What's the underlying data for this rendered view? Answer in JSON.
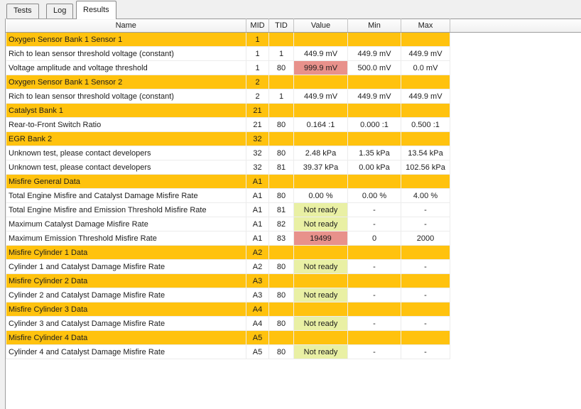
{
  "tabs": [
    {
      "label": "Tests",
      "active": false
    },
    {
      "label": "Log",
      "active": false
    },
    {
      "label": "Results",
      "active": true
    }
  ],
  "table": {
    "columns": [
      "Name",
      "MID",
      "TID",
      "Value",
      "Min",
      "Max"
    ],
    "rows": [
      {
        "type": "group",
        "name": "Oxygen Sensor Bank 1 Sensor 1",
        "mid": "1"
      },
      {
        "type": "data",
        "name": "Rich to lean sensor threshold voltage (constant)",
        "mid": "1",
        "tid": "1",
        "value": "449.9 mV",
        "value_state": "normal",
        "min": "449.9 mV",
        "max": "449.9 mV"
      },
      {
        "type": "data",
        "name": "Voltage amplitude and voltage threshold",
        "mid": "1",
        "tid": "80",
        "value": "999.9 mV",
        "value_state": "alert",
        "min": "500.0 mV",
        "max": "0.0 mV"
      },
      {
        "type": "group",
        "name": "Oxygen Sensor Bank 1 Sensor 2",
        "mid": "2"
      },
      {
        "type": "data",
        "name": "Rich to lean sensor threshold voltage (constant)",
        "mid": "2",
        "tid": "1",
        "value": "449.9 mV",
        "value_state": "normal",
        "min": "449.9 mV",
        "max": "449.9 mV"
      },
      {
        "type": "group",
        "name": "Catalyst Bank 1",
        "mid": "21"
      },
      {
        "type": "data",
        "name": "Rear-to-Front Switch Ratio",
        "mid": "21",
        "tid": "80",
        "value": "0.164 :1",
        "value_state": "normal",
        "min": "0.000 :1",
        "max": "0.500 :1"
      },
      {
        "type": "group",
        "name": "EGR Bank 2",
        "mid": "32"
      },
      {
        "type": "data",
        "name": "Unknown test, please contact developers",
        "mid": "32",
        "tid": "80",
        "value": "2.48 kPa",
        "value_state": "normal",
        "min": "1.35 kPa",
        "max": "13.54 kPa"
      },
      {
        "type": "data",
        "name": "Unknown test, please contact developers",
        "mid": "32",
        "tid": "81",
        "value": "39.37 kPa",
        "value_state": "normal",
        "min": "0.00 kPa",
        "max": "102.56 kPa"
      },
      {
        "type": "group",
        "name": "Misfire General Data",
        "mid": "A1"
      },
      {
        "type": "data",
        "name": "Total Engine Misfire and Catalyst Damage Misfire Rate",
        "mid": "A1",
        "tid": "80",
        "value": "0.00 %",
        "value_state": "normal",
        "min": "0.00 %",
        "max": "4.00 %"
      },
      {
        "type": "data",
        "name": "Total Engine Misfire and Emission Threshold Misfire Rate",
        "mid": "A1",
        "tid": "81",
        "value": "Not ready",
        "value_state": "pending",
        "min": "-",
        "max": "-"
      },
      {
        "type": "data",
        "name": "Maximum Catalyst Damage Misfire Rate",
        "mid": "A1",
        "tid": "82",
        "value": "Not ready",
        "value_state": "pending",
        "min": "-",
        "max": "-"
      },
      {
        "type": "data",
        "name": "Maximum Emission Threshold Misfire Rate",
        "mid": "A1",
        "tid": "83",
        "value": "19499",
        "value_state": "alert",
        "min": "0",
        "max": "2000"
      },
      {
        "type": "group",
        "name": "Misfire Cylinder 1 Data",
        "mid": "A2"
      },
      {
        "type": "data",
        "name": "Cylinder 1 and Catalyst Damage Misfire Rate",
        "mid": "A2",
        "tid": "80",
        "value": "Not ready",
        "value_state": "pending",
        "min": "-",
        "max": "-"
      },
      {
        "type": "group",
        "name": "Misfire Cylinder 2 Data",
        "mid": "A3"
      },
      {
        "type": "data",
        "name": "Cylinder 2 and Catalyst Damage Misfire Rate",
        "mid": "A3",
        "tid": "80",
        "value": "Not ready",
        "value_state": "pending",
        "min": "-",
        "max": "-"
      },
      {
        "type": "group",
        "name": "Misfire Cylinder 3 Data",
        "mid": "A4"
      },
      {
        "type": "data",
        "name": "Cylinder 3 and Catalyst Damage Misfire Rate",
        "mid": "A4",
        "tid": "80",
        "value": "Not ready",
        "value_state": "pending",
        "min": "-",
        "max": "-"
      },
      {
        "type": "group",
        "name": "Misfire Cylinder 4 Data",
        "mid": "A5"
      },
      {
        "type": "data",
        "name": "Cylinder 4 and Catalyst Damage Misfire Rate",
        "mid": "A5",
        "tid": "80",
        "value": "Not ready",
        "value_state": "pending",
        "min": "-",
        "max": "-"
      }
    ]
  },
  "colors": {
    "group_row": "#FFC20E",
    "value_alert": "#E8918B",
    "value_pending": "#E9F0A4"
  }
}
